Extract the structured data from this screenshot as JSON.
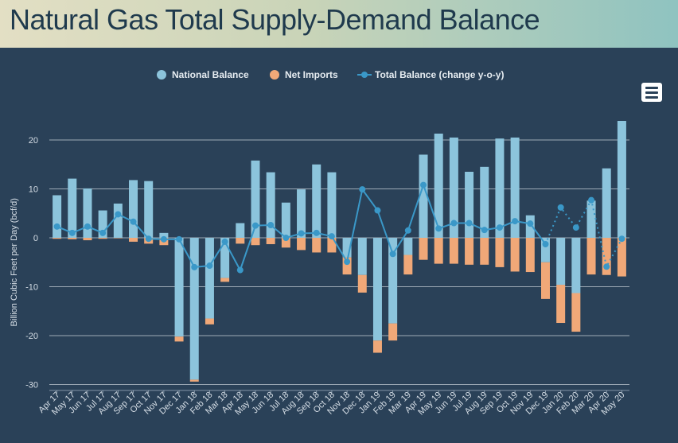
{
  "page": {
    "title": "Natural Gas Total Supply-Demand Balance"
  },
  "chart_data": {
    "type": "bar",
    "title": "Natural Gas Total Supply-Demand Balance",
    "xlabel": "",
    "ylabel": "Billion Cubic Feet per Day (bcf/d)",
    "ylim": [
      -31,
      31
    ],
    "yticks": [
      20,
      10,
      0,
      -10,
      -20,
      -30
    ],
    "legend_position": "top-center",
    "categories": [
      "Apr 17",
      "May 17",
      "Jun 17",
      "Jul 17",
      "Aug 17",
      "Sep 17",
      "Oct 17",
      "Nov 17",
      "Dec 17",
      "Jan 18",
      "Feb 18",
      "Mar 18",
      "Apr 18",
      "May 18",
      "Jun 18",
      "Jul 18",
      "Aug 18",
      "Sep 18",
      "Oct 18",
      "Nov 18",
      "Dec 18",
      "Jan 19",
      "Feb 19",
      "Mar 19",
      "Apr 19",
      "May 19",
      "Jun 19",
      "Jul 19",
      "Aug 19",
      "Sep 19",
      "Oct 19",
      "Nov 19",
      "Dec 19",
      "Jan 20",
      "Feb 20",
      "Mar 20",
      "Apr 20",
      "May 20"
    ],
    "series": [
      {
        "name": "National Balance",
        "kind": "bar",
        "color": "#8cc4dc",
        "values": [
          8.7,
          12.1,
          10.1,
          5.6,
          7.0,
          11.8,
          11.6,
          1.0,
          -20.2,
          -29.0,
          -16.5,
          -8.2,
          3.0,
          15.8,
          13.4,
          7.2,
          9.9,
          15.0,
          13.4,
          -4.0,
          -7.6,
          -21.0,
          -17.5,
          -3.5,
          17.0,
          21.3,
          20.5,
          13.5,
          14.5,
          20.3,
          20.5,
          4.6,
          -5.0,
          -9.6,
          -11.3,
          7.6,
          14.2,
          23.9
        ]
      },
      {
        "name": "Net Imports",
        "kind": "bar",
        "color": "#f0a878",
        "values": [
          -0.2,
          -0.3,
          -0.5,
          -0.2,
          -0.1,
          -0.8,
          -1.2,
          -1.5,
          -1.0,
          -0.4,
          -1.2,
          -0.8,
          -1.2,
          -1.5,
          -1.3,
          -2.0,
          -2.5,
          -3.0,
          -3.0,
          -3.5,
          -3.6,
          -2.5,
          -3.5,
          -4.0,
          -4.5,
          -5.3,
          -5.3,
          -5.5,
          -5.5,
          -6.0,
          -6.9,
          -7.0,
          -7.5,
          -7.8,
          -7.9,
          -7.5,
          -7.6,
          -7.9
        ]
      },
      {
        "name": "Total Balance (change y-o-y)",
        "kind": "line",
        "color": "#3a98c8",
        "values": [
          2.3,
          1.0,
          2.3,
          1.0,
          4.8,
          3.3,
          -0.2,
          -0.3,
          -0.3,
          -6.0,
          -5.7,
          -0.8,
          -6.6,
          2.5,
          2.6,
          0.0,
          0.9,
          1.0,
          0.3,
          -4.9,
          9.9,
          5.6,
          -3.3,
          1.5,
          10.8,
          1.9,
          3.0,
          3.0,
          1.6,
          2.1,
          3.4,
          2.9,
          -1.3,
          6.2,
          2.1,
          7.7,
          -5.9,
          -0.2
        ],
        "dotted_from": "Dec 19"
      }
    ]
  }
}
